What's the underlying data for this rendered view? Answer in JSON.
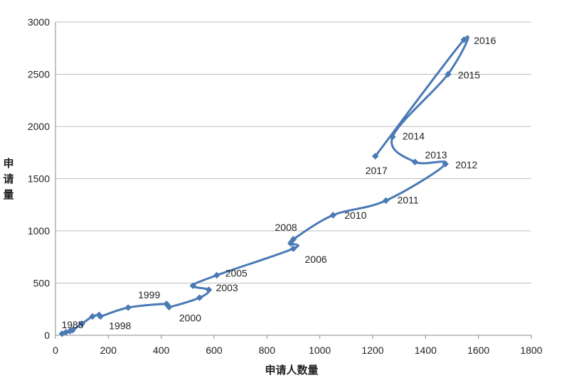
{
  "chart_data": {
    "type": "line",
    "title": "",
    "xlabel": "申请人数量",
    "ylabel": "申请量",
    "xlim": [
      0,
      1800
    ],
    "ylim": [
      0,
      3000
    ],
    "x_ticks": [
      "0",
      "200",
      "400",
      "600",
      "800",
      "1000",
      "1200",
      "1400",
      "1600",
      "1800"
    ],
    "y_ticks": [
      "0",
      "500",
      "1000",
      "1500",
      "2000",
      "2500",
      "3000"
    ],
    "grid": true,
    "line_color": "#4a7ab5",
    "series": [
      {
        "points": [
          {
            "x": 25,
            "y": 15,
            "label": ""
          },
          {
            "x": 40,
            "y": 30,
            "label": ""
          },
          {
            "x": 55,
            "y": 40,
            "label": "1985"
          },
          {
            "x": 65,
            "y": 50,
            "label": ""
          },
          {
            "x": 100,
            "y": 110,
            "label": ""
          },
          {
            "x": 140,
            "y": 180,
            "label": ""
          },
          {
            "x": 165,
            "y": 195,
            "label": ""
          },
          {
            "x": 170,
            "y": 180,
            "label": "1998"
          },
          {
            "x": 275,
            "y": 265,
            "label": ""
          },
          {
            "x": 420,
            "y": 300,
            "label": "1999"
          },
          {
            "x": 430,
            "y": 270,
            "label": "2000"
          },
          {
            "x": 545,
            "y": 360,
            "label": ""
          },
          {
            "x": 580,
            "y": 435,
            "label": "2003"
          },
          {
            "x": 520,
            "y": 475,
            "label": ""
          },
          {
            "x": 610,
            "y": 575,
            "label": "2005"
          },
          {
            "x": 900,
            "y": 830,
            "label": "2006"
          },
          {
            "x": 890,
            "y": 880,
            "label": ""
          },
          {
            "x": 900,
            "y": 920,
            "label": "2008"
          },
          {
            "x": 1050,
            "y": 1150,
            "label": "2010"
          },
          {
            "x": 1250,
            "y": 1290,
            "label": "2011"
          },
          {
            "x": 1475,
            "y": 1640,
            "label": "2012"
          },
          {
            "x": 1360,
            "y": 1660,
            "label": "2013"
          },
          {
            "x": 1275,
            "y": 1900,
            "label": "2014"
          },
          {
            "x": 1485,
            "y": 2500,
            "label": "2015"
          },
          {
            "x": 1545,
            "y": 2830,
            "label": "2016"
          },
          {
            "x": 1210,
            "y": 1715,
            "label": "2017"
          }
        ]
      }
    ]
  }
}
